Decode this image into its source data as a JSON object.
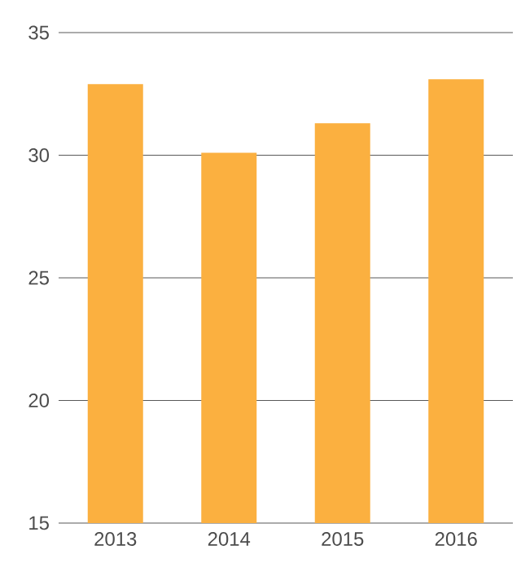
{
  "chart_data": {
    "type": "bar",
    "categories": [
      "2013",
      "2014",
      "2015",
      "2016"
    ],
    "values": [
      32.9,
      30.1,
      31.3,
      33.1
    ],
    "color": "#fbb040",
    "ylim": [
      15,
      35
    ],
    "yticks": [
      15,
      20,
      25,
      30,
      35
    ],
    "grid": "y"
  }
}
